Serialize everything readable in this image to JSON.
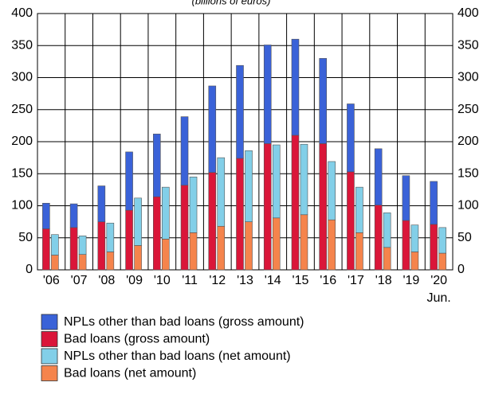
{
  "chart_data": {
    "type": "stacked_bar",
    "subtitle": "(billions of euros)",
    "categories": [
      "'06",
      "'07",
      "'08",
      "'09",
      "'10",
      "'11",
      "'12",
      "'13",
      "'14",
      "'15",
      "'16",
      "'17",
      "'18",
      "'19",
      "'20"
    ],
    "category_note": "Jun.",
    "series": [
      {
        "name": "NPLs other than bad loans (gross amount)",
        "stack": "gross",
        "color": "#3a62d8",
        "values": [
          40,
          37,
          56,
          91,
          98,
          107,
          135,
          145,
          154,
          150,
          133,
          106,
          88,
          70,
          67
        ]
      },
      {
        "name": "Bad loans (gross amount)",
        "stack": "gross",
        "color": "#da1639",
        "values": [
          64,
          66,
          75,
          93,
          114,
          132,
          152,
          174,
          197,
          210,
          197,
          153,
          101,
          77,
          71
        ]
      },
      {
        "name": "NPLs other than bad loans (net amount)",
        "stack": "net",
        "color": "#82cfe8",
        "values": [
          32,
          29,
          45,
          74,
          81,
          87,
          107,
          111,
          114,
          110,
          91,
          71,
          54,
          42,
          40
        ]
      },
      {
        "name": "Bad loans (net amount)",
        "stack": "net",
        "color": "#f5844c",
        "values": [
          23,
          24,
          28,
          38,
          48,
          58,
          68,
          75,
          81,
          86,
          78,
          58,
          35,
          28,
          26
        ]
      }
    ],
    "ylim": [
      0,
      400
    ],
    "yticks": [
      0,
      50,
      100,
      150,
      200,
      250,
      300,
      350,
      400
    ],
    "grid": true
  }
}
